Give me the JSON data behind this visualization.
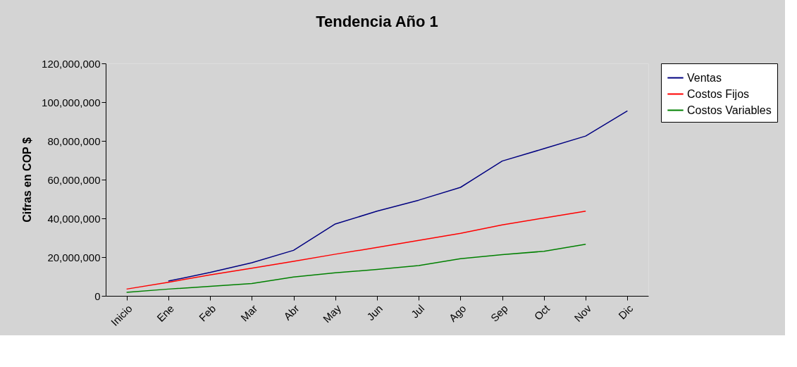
{
  "chart_data": {
    "type": "line",
    "title": "Tendencia Año 1",
    "ylabel": "Cifras en COP $",
    "categories": [
      "Inicio",
      "Ene",
      "Feb",
      "Mar",
      "Abr",
      "May",
      "Jun",
      "Jul",
      "Ago",
      "Sep",
      "Oct",
      "Nov",
      "Dic"
    ],
    "series": [
      {
        "name": "Ventas",
        "color": "#000080",
        "values": [
          null,
          7600000.0,
          12100000.0,
          17100000.0,
          23500000.0,
          37100000.0,
          43700000.0,
          49400000.0,
          56000000.0,
          69600000.0,
          76000000.0,
          82500000.0,
          95500000.0
        ]
      },
      {
        "name": "Costos Fijos",
        "color": "#ff0000",
        "values": [
          3500000.0,
          7000000.0,
          10800000.0,
          14300000.0,
          17800000.0,
          21500000.0,
          25000000.0,
          28600000.0,
          32300000.0,
          36600000.0,
          40200000.0,
          43700000.0,
          null
        ]
      },
      {
        "name": "Costos Variables",
        "color": "#008000",
        "values": [
          1800000.0,
          3500000.0,
          4900000.0,
          6400000.0,
          9700000.0,
          11900000.0,
          13600000.0,
          15600000.0,
          19200000.0,
          21300000.0,
          23000000.0,
          26600000.0,
          null
        ]
      }
    ],
    "ylim": [
      0,
      120000000
    ],
    "yticks": [
      0,
      {
        "value": 20000000,
        "label": "20,000,000"
      },
      {
        "value": 40000000,
        "label": "40,000,000"
      },
      {
        "value": 60000000,
        "label": "60,000,000"
      },
      {
        "value": 80000000,
        "label": "80,000,000"
      },
      {
        "value": 100000000,
        "label": "100,000,000"
      },
      {
        "value": 120000000,
        "label": "120,000,000"
      }
    ],
    "grid": false,
    "legend": "right",
    "marker": "none",
    "line_style": "solid"
  }
}
